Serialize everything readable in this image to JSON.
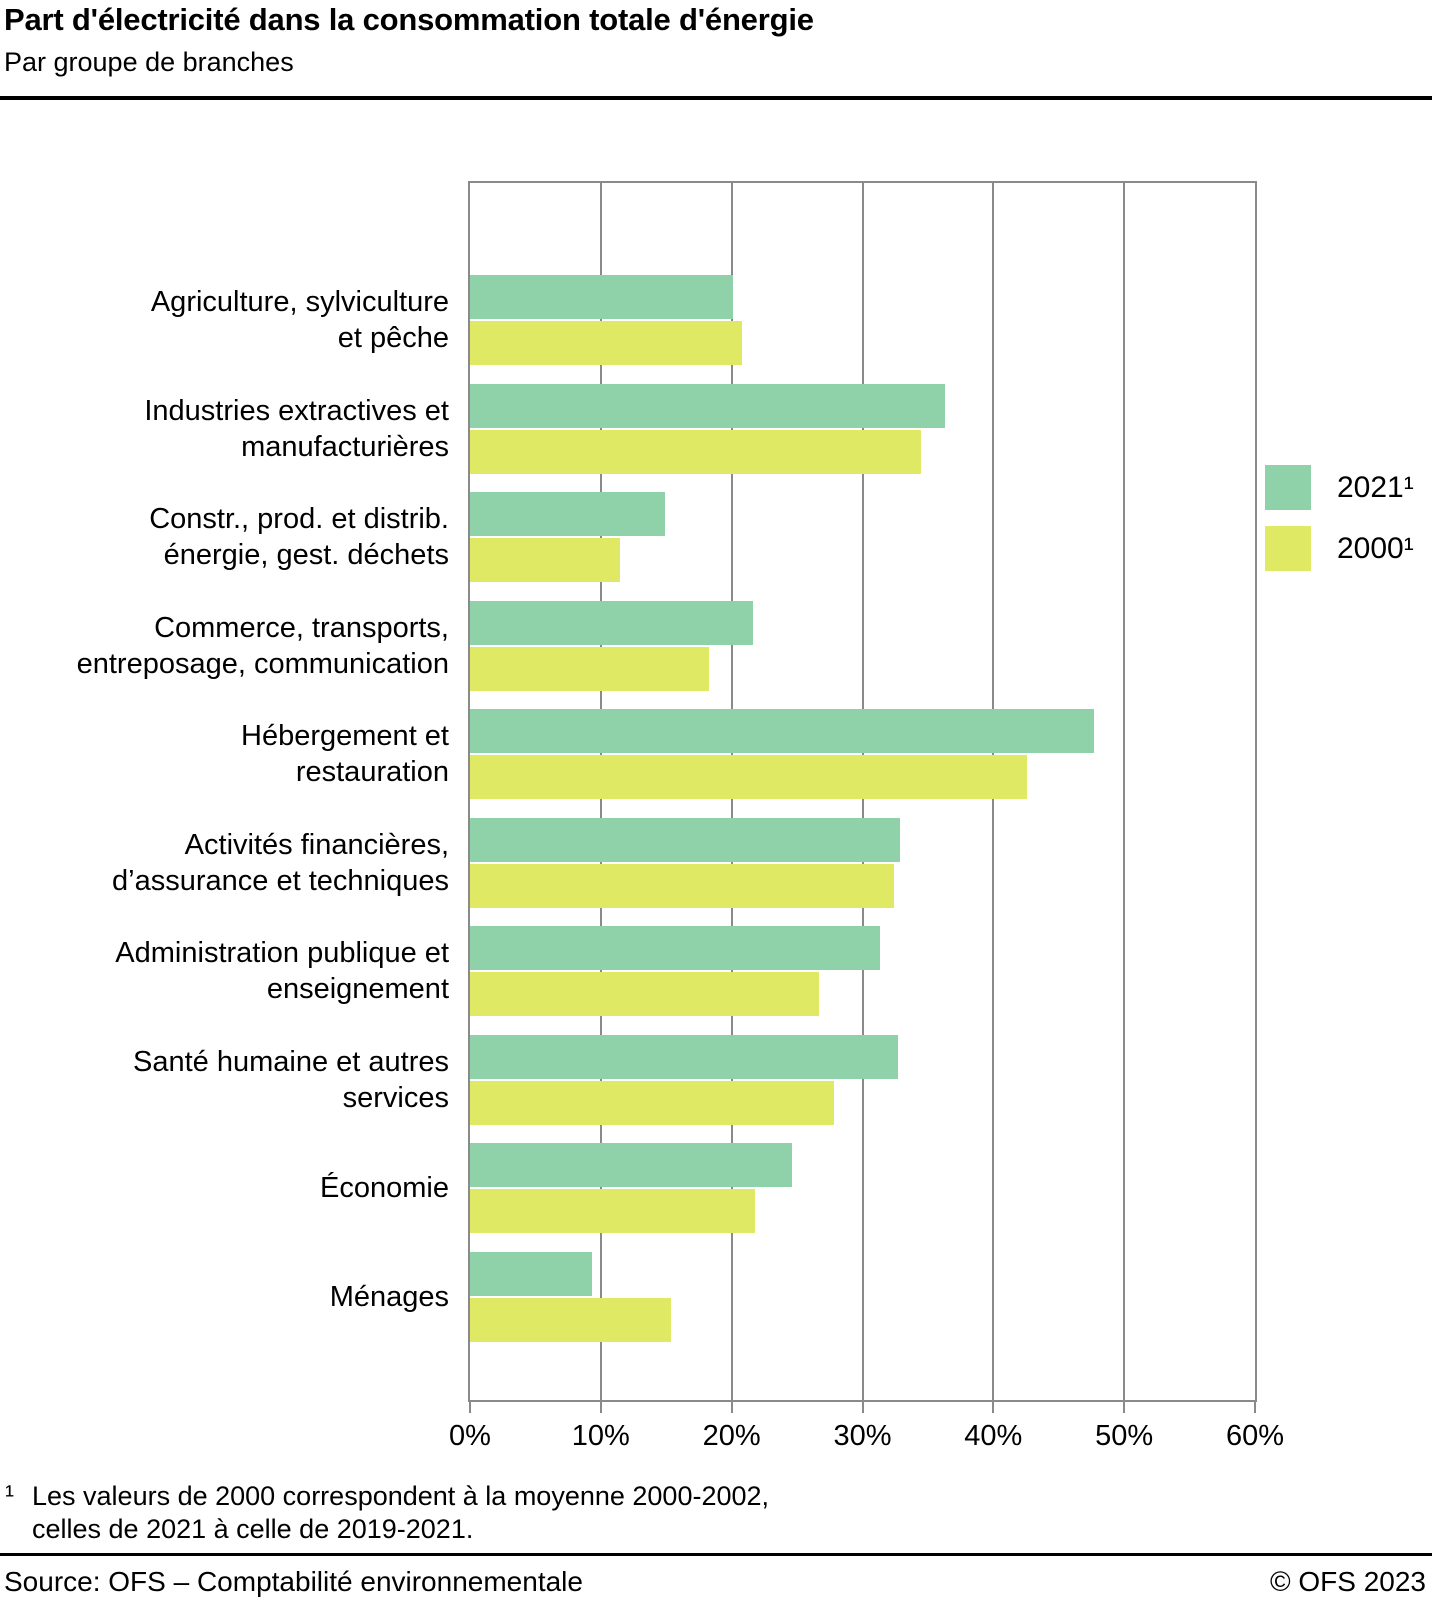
{
  "header": {
    "title": "Part d'électricité dans la consommation totale d'énergie",
    "subtitle": "Par groupe de branches"
  },
  "legend": {
    "position": "right",
    "items": [
      {
        "label": "2021¹",
        "color": "#8FD1A8"
      },
      {
        "label": "2000¹",
        "color": "#DFE963"
      }
    ]
  },
  "chart_data": {
    "type": "bar",
    "orientation": "horizontal",
    "title": "Part d'électricité dans la consommation totale d'énergie",
    "subtitle": "Par groupe de branches",
    "categories": [
      "Agriculture, sylviculture\net pêche",
      "Industries extractives et\nmanufacturières",
      "Constr., prod. et distrib.\nénergie, gest. déchets",
      "Commerce, transports,\nentreposage, communication",
      "Hébergement et\nrestauration",
      "Activités financières,\nd’assurance et techniques",
      "Administration publique et\nenseignement",
      "Santé humaine et autres\nservices",
      "Économie",
      "Ménages"
    ],
    "series": [
      {
        "name": "2021¹",
        "color": "#8FD1A8",
        "values": [
          20.1,
          36.3,
          14.9,
          21.6,
          47.7,
          32.9,
          31.3,
          32.7,
          24.6,
          9.3
        ]
      },
      {
        "name": "2000¹",
        "color": "#DFE963",
        "values": [
          20.8,
          34.5,
          11.5,
          18.3,
          42.6,
          32.4,
          26.7,
          27.8,
          21.8,
          15.4
        ]
      }
    ],
    "xlabel": "",
    "ylabel": "",
    "x_ticks": [
      "0%",
      "10%",
      "20%",
      "30%",
      "40%",
      "50%",
      "60%"
    ],
    "xlim": [
      0,
      60
    ],
    "grid": true,
    "grid_color": "#8a8a8a",
    "legend_position": "right"
  },
  "footnote": {
    "marker": "¹",
    "text": "Les valeurs de 2000 correspondent à la moyenne 2000-2002,\ncelles de 2021 à celle de 2019-2021."
  },
  "footer": {
    "source": "Source: OFS – Comptabilité environnementale",
    "copyright": "© OFS 2023"
  }
}
